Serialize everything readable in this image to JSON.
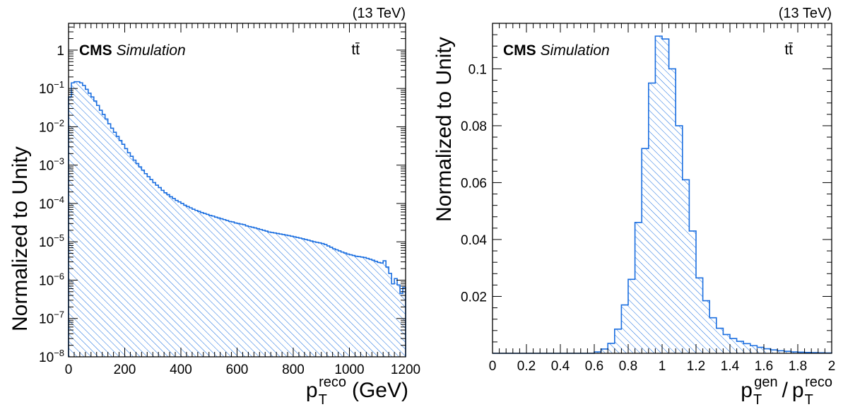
{
  "colors": {
    "histogram": "#1a6ee0",
    "hatch": "#1a6ee0",
    "axis": "#000000"
  },
  "chart_data": [
    {
      "type": "histogram",
      "scale_y": "log",
      "energy_label": "(13 TeV)",
      "experiment": "CMS",
      "label": "Simulation",
      "process": "tt̄",
      "ylabel": "Normalized to Unity",
      "xlabel_main": "p",
      "xlabel_sub": "T",
      "xlabel_sup": "reco",
      "xlabel_unit": "(GeV)",
      "xlim": [
        0,
        1200
      ],
      "ylim": [
        1e-08,
        5
      ],
      "x_ticks": [
        "0",
        "200",
        "400",
        "600",
        "800",
        "1000",
        "1200"
      ],
      "y_ticks": [
        {
          "base": "10",
          "exp": "−8",
          "value": 1e-08
        },
        {
          "base": "10",
          "exp": "−7",
          "value": 1e-07
        },
        {
          "base": "10",
          "exp": "−6",
          "value": 1e-06
        },
        {
          "base": "10",
          "exp": "−5",
          "value": 1e-05
        },
        {
          "base": "10",
          "exp": "−4",
          "value": 0.0001
        },
        {
          "base": "10",
          "exp": "−3",
          "value": 0.001
        },
        {
          "base": "10",
          "exp": "−2",
          "value": 0.01
        },
        {
          "base": "10",
          "exp": "−1",
          "value": 0.1
        },
        {
          "base": "1",
          "exp": "",
          "value": 1
        }
      ],
      "bin_width": 10,
      "values": [
        0.06,
        0.14,
        0.15,
        0.15,
        0.14,
        0.12,
        0.095,
        0.075,
        0.06,
        0.047,
        0.036,
        0.027,
        0.021,
        0.016,
        0.012,
        0.0092,
        0.0072,
        0.0056,
        0.0044,
        0.0035,
        0.0027,
        0.0021,
        0.0017,
        0.00135,
        0.0011,
        0.0009,
        0.00074,
        0.0006,
        0.0005,
        0.00042,
        0.00035,
        0.0003,
        0.00026,
        0.00022,
        0.00019,
        0.00017,
        0.00015,
        0.000135,
        0.00012,
        0.00011,
        0.0001,
        9e-05,
        8.3e-05,
        7.7e-05,
        7.1e-05,
        6.6e-05,
        6.2e-05,
        5.8e-05,
        5.5e-05,
        5.2e-05,
        4.9e-05,
        4.7e-05,
        4.4e-05,
        4.2e-05,
        4e-05,
        3.8e-05,
        3.6e-05,
        3.4e-05,
        3.3e-05,
        3.1e-05,
        3e-05,
        2.9e-05,
        2.8e-05,
        2.6e-05,
        2.5e-05,
        2.4e-05,
        2.3e-05,
        2.2e-05,
        2.1e-05,
        2e-05,
        1.9e-05,
        1.8e-05,
        1.75e-05,
        1.7e-05,
        1.65e-05,
        1.6e-05,
        1.55e-05,
        1.5e-05,
        1.45e-05,
        1.4e-05,
        1.35e-05,
        1.3e-05,
        1.25e-05,
        1.2e-05,
        1.15e-05,
        1.1e-05,
        1.05e-05,
        1e-05,
        9.7e-06,
        9.4e-06,
        9e-06,
        8.5e-06,
        7.8e-06,
        7.2e-06,
        6.6e-06,
        6.2e-06,
        5.8e-06,
        5.4e-06,
        5.1e-06,
        4.8e-06,
        4.6e-06,
        4.4e-06,
        4.2e-06,
        4.1e-06,
        4e-06,
        3.9e-06,
        3.7e-06,
        3.5e-06,
        3.3e-06,
        3.1e-06,
        2.9e-06,
        2.8e-06,
        3.2e-06,
        2.2e-06,
        1.5e-06,
        8e-07,
        1.1e-06,
        7.5e-07,
        4.5e-07,
        6.5e-07
      ]
    },
    {
      "type": "histogram",
      "scale_y": "linear",
      "energy_label": "(13 TeV)",
      "experiment": "CMS",
      "label": "Simulation",
      "process": "tt̄",
      "ylabel": "Normalized to Unity",
      "xlabel_num_main": "p",
      "xlabel_num_sub": "T",
      "xlabel_num_sup": "gen",
      "xlabel_sep": "/",
      "xlabel_den_main": "p",
      "xlabel_den_sub": "T",
      "xlabel_den_sup": "reco",
      "xlim": [
        0,
        2
      ],
      "ylim": [
        0,
        0.116
      ],
      "x_ticks": [
        "0",
        "0.2",
        "0.4",
        "0.6",
        "0.8",
        "1",
        "1.2",
        "1.4",
        "1.6",
        "1.8",
        "2"
      ],
      "y_ticks": [
        {
          "label": "0.02",
          "value": 0.02
        },
        {
          "label": "0.04",
          "value": 0.04
        },
        {
          "label": "0.06",
          "value": 0.06
        },
        {
          "label": "0.08",
          "value": 0.08
        },
        {
          "label": "0.1",
          "value": 0.1
        }
      ],
      "bin_width": 0.04,
      "values": [
        0,
        0,
        0,
        0,
        0,
        0,
        0,
        0,
        0,
        0,
        0,
        0,
        0,
        0,
        0,
        0.0005,
        0.0015,
        0.0035,
        0.0085,
        0.017,
        0.026,
        0.046,
        0.072,
        0.095,
        0.1115,
        0.1105,
        0.1,
        0.08,
        0.061,
        0.043,
        0.0265,
        0.0185,
        0.0125,
        0.0088,
        0.0066,
        0.0052,
        0.0042,
        0.0034,
        0.0027,
        0.0021,
        0.0016,
        0.0012,
        0.0009,
        0.0007,
        0.0005,
        0.0004,
        0.0003,
        0.00022,
        0.00016,
        0.0001
      ]
    }
  ]
}
